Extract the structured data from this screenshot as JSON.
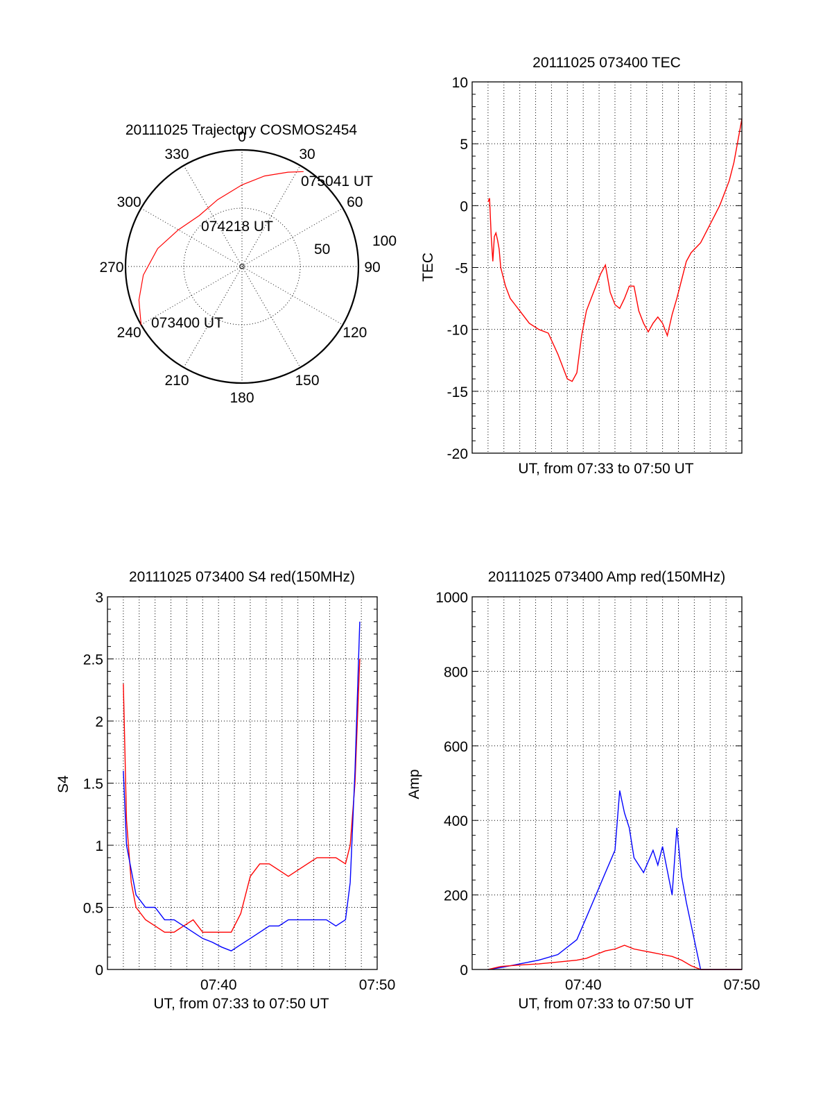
{
  "chart_data": [
    {
      "type": "polar",
      "title": "20111025 Trajectory COSMOS2454",
      "azimuth_labels": [
        "0",
        "30",
        "60",
        "90",
        "120",
        "150",
        "180",
        "210",
        "240",
        "270",
        "300",
        "330"
      ],
      "radial_labels": [
        "50",
        "100"
      ],
      "radial_max": 100,
      "track": [
        {
          "az": 240,
          "r": 100
        },
        {
          "az": 252,
          "r": 93
        },
        {
          "az": 265,
          "r": 85
        },
        {
          "az": 282,
          "r": 74
        },
        {
          "az": 300,
          "r": 63
        },
        {
          "az": 320,
          "r": 57
        },
        {
          "az": 340,
          "r": 61
        },
        {
          "az": 0,
          "r": 70
        },
        {
          "az": 14,
          "r": 80
        },
        {
          "az": 26,
          "r": 90
        },
        {
          "az": 33,
          "r": 97
        }
      ],
      "annotations": [
        {
          "text": "075041 UT",
          "az": 33,
          "r": 97
        },
        {
          "text": "074218 UT",
          "az": 320,
          "r": 57
        },
        {
          "text": "073400 UT",
          "az": 240,
          "r": 100
        }
      ],
      "color": "#ff0000"
    },
    {
      "type": "line",
      "title": "20111025 073400 TEC",
      "xlabel": "UT, from 07:33 to 07:50 UT",
      "ylabel": "TEC",
      "xlim": [
        7.55,
        7.8333
      ],
      "ylim": [
        -20,
        10
      ],
      "yticks": [
        "10",
        "5",
        "0",
        "-5",
        "-10",
        "-15",
        "-20"
      ],
      "xtick_labels": [],
      "grid": true,
      "series": [
        {
          "color": "#ff0000",
          "x": [
            7.5667,
            7.5683,
            7.57,
            7.5717,
            7.5733,
            7.575,
            7.5767,
            7.5783,
            7.58,
            7.585,
            7.59,
            7.595,
            7.6,
            7.61,
            7.62,
            7.63,
            7.64,
            7.65,
            7.655,
            7.66,
            7.665,
            7.67,
            7.675,
            7.68,
            7.685,
            7.69,
            7.695,
            7.7,
            7.705,
            7.71,
            7.715,
            7.72,
            7.725,
            7.73,
            7.735,
            7.74,
            7.745,
            7.75,
            7.755,
            7.76,
            7.765,
            7.77,
            7.775,
            7.78,
            7.79,
            7.8,
            7.81,
            7.82,
            7.825,
            7.8333
          ],
          "y": [
            0.3,
            0.6,
            -2.5,
            -4.5,
            -2.5,
            -2.2,
            -2.8,
            -3.5,
            -5.0,
            -6.5,
            -7.5,
            -8.0,
            -8.5,
            -9.5,
            -10.0,
            -10.3,
            -12.0,
            -14.0,
            -14.2,
            -13.5,
            -10.5,
            -8.5,
            -7.5,
            -6.5,
            -5.5,
            -4.8,
            -7.0,
            -8.0,
            -8.3,
            -7.5,
            -6.5,
            -6.5,
            -8.5,
            -9.5,
            -10.2,
            -9.5,
            -9.0,
            -9.5,
            -10.5,
            -8.8,
            -7.5,
            -6.0,
            -4.5,
            -3.8,
            -3.0,
            -1.5,
            0.0,
            2.0,
            3.5,
            7.0
          ]
        }
      ]
    },
    {
      "type": "line",
      "title": "20111025 073400 S4 red(150MHz)",
      "xlabel": "UT, from 07:33 to 07:50 UT",
      "ylabel": "S4",
      "xlim": [
        7.55,
        7.8333
      ],
      "ylim": [
        0,
        3
      ],
      "yticks": [
        "3",
        "2.5",
        "2",
        "1.5",
        "1",
        "0.5",
        "0"
      ],
      "xtick_labels": [
        {
          "label": "07:40",
          "x": 7.6667
        },
        {
          "label": "07:50",
          "x": 7.8333
        }
      ],
      "grid": true,
      "series": [
        {
          "color": "#ff0000",
          "x": [
            7.5667,
            7.57,
            7.575,
            7.58,
            7.59,
            7.6,
            7.61,
            7.62,
            7.63,
            7.64,
            7.65,
            7.66,
            7.67,
            7.68,
            7.69,
            7.7,
            7.71,
            7.72,
            7.73,
            7.74,
            7.75,
            7.76,
            7.77,
            7.78,
            7.79,
            7.8,
            7.805,
            7.81,
            7.815
          ],
          "y": [
            2.3,
            1.2,
            0.7,
            0.5,
            0.4,
            0.35,
            0.3,
            0.3,
            0.35,
            0.4,
            0.3,
            0.3,
            0.3,
            0.3,
            0.45,
            0.75,
            0.85,
            0.85,
            0.8,
            0.75,
            0.8,
            0.85,
            0.9,
            0.9,
            0.9,
            0.85,
            1.0,
            1.5,
            2.5
          ]
        },
        {
          "color": "#0000ff",
          "x": [
            7.5667,
            7.57,
            7.575,
            7.58,
            7.59,
            7.6,
            7.61,
            7.62,
            7.63,
            7.64,
            7.65,
            7.66,
            7.67,
            7.68,
            7.69,
            7.7,
            7.71,
            7.72,
            7.73,
            7.74,
            7.75,
            7.76,
            7.77,
            7.78,
            7.79,
            7.8,
            7.805,
            7.81,
            7.815
          ],
          "y": [
            1.6,
            1.0,
            0.8,
            0.6,
            0.5,
            0.5,
            0.4,
            0.4,
            0.35,
            0.3,
            0.25,
            0.22,
            0.18,
            0.15,
            0.2,
            0.25,
            0.3,
            0.35,
            0.35,
            0.4,
            0.4,
            0.4,
            0.4,
            0.4,
            0.35,
            0.4,
            0.7,
            1.6,
            2.8
          ]
        }
      ]
    },
    {
      "type": "line",
      "title": "20111025 073400 Amp red(150MHz)",
      "xlabel": "UT, from 07:33 to 07:50 UT",
      "ylabel": "Amp",
      "xlim": [
        7.55,
        7.8333
      ],
      "ylim": [
        0,
        1000
      ],
      "yticks": [
        "1000",
        "800",
        "600",
        "400",
        "200",
        "0"
      ],
      "xtick_labels": [
        {
          "label": "07:40",
          "x": 7.6667
        },
        {
          "label": "07:50",
          "x": 7.8333
        }
      ],
      "grid": true,
      "series": [
        {
          "color": "#0000ff",
          "x": [
            7.5667,
            7.58,
            7.6,
            7.62,
            7.64,
            7.66,
            7.67,
            7.68,
            7.69,
            7.7,
            7.705,
            7.71,
            7.715,
            7.72,
            7.73,
            7.74,
            7.745,
            7.75,
            7.76,
            7.765,
            7.77,
            7.775,
            7.78,
            7.79,
            7.8,
            7.8333
          ],
          "y": [
            0,
            5,
            15,
            25,
            40,
            80,
            140,
            200,
            260,
            320,
            480,
            420,
            380,
            300,
            260,
            320,
            280,
            330,
            200,
            380,
            250,
            180,
            120,
            0,
            0,
            0
          ]
        },
        {
          "color": "#ff0000",
          "x": [
            7.5667,
            7.58,
            7.6,
            7.62,
            7.64,
            7.66,
            7.67,
            7.68,
            7.69,
            7.7,
            7.71,
            7.72,
            7.73,
            7.74,
            7.75,
            7.76,
            7.77,
            7.78,
            7.79,
            7.8333
          ],
          "y": [
            0,
            8,
            12,
            15,
            20,
            25,
            30,
            40,
            50,
            55,
            65,
            55,
            50,
            45,
            40,
            35,
            25,
            10,
            0,
            0
          ]
        }
      ]
    }
  ]
}
